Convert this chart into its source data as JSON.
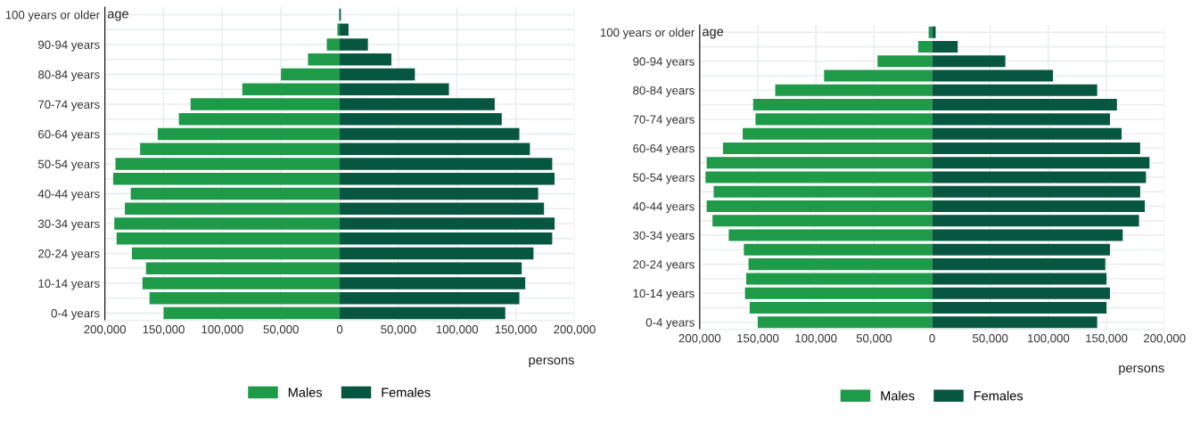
{
  "chart_data": [
    {
      "type": "bar",
      "orientation": "horizontal",
      "ylabel": "age",
      "xlabel": "persons",
      "categories": [
        "100 years or older",
        null,
        "90-94 years",
        null,
        "80-84 years",
        null,
        "70-74 years",
        null,
        "60-64 years",
        null,
        "50-54 years",
        null,
        "40-44 years",
        null,
        "30-34 years",
        null,
        "20-24 years",
        null,
        "10-14 years",
        null,
        "0-4 years"
      ],
      "series": [
        {
          "name": "Males",
          "color": "#1e9a48",
          "values": [
            -500,
            -2000,
            -11000,
            -27000,
            -50000,
            -83000,
            -127000,
            -137000,
            -155000,
            -170000,
            -191000,
            -193000,
            -178000,
            -183000,
            -192000,
            -190000,
            -177000,
            -165000,
            -168000,
            -162000,
            -150000
          ]
        },
        {
          "name": "Females",
          "color": "#075640",
          "values": [
            1000,
            7500,
            24000,
            44000,
            64000,
            93000,
            132000,
            138000,
            153000,
            162000,
            181000,
            183000,
            169000,
            174000,
            183000,
            181000,
            165000,
            155000,
            158000,
            153000,
            141000
          ]
        }
      ],
      "xlim": [
        -200000,
        200000
      ],
      "xticks": [
        {
          "value": -200000,
          "label": "200,000"
        },
        {
          "value": -150000,
          "label": "150,000"
        },
        {
          "value": -100000,
          "label": "100,000"
        },
        {
          "value": -50000,
          "label": "50,000"
        },
        0,
        {
          "value": 50000,
          "label": "50,000"
        },
        {
          "value": 100000,
          "label": "100,000"
        },
        {
          "value": 150000,
          "label": "150,000"
        },
        {
          "value": 200000,
          "label": "200,000"
        }
      ],
      "grid": true,
      "legend": "bottom",
      "stacked": true
    },
    {
      "type": "bar",
      "orientation": "horizontal",
      "ylabel": "age",
      "xlabel": "persons",
      "categories": [
        "100 years or older",
        null,
        "90-94 years",
        null,
        "80-84 years",
        null,
        "70-74 years",
        null,
        "60-64 years",
        null,
        "50-54 years",
        null,
        "40-44 years",
        null,
        "30-34 years",
        null,
        "20-24 years",
        null,
        "10-14 years",
        null,
        "0-4 years"
      ],
      "series": [
        {
          "name": "Males",
          "color": "#1e9a48",
          "values": [
            -3000,
            -12000,
            -47000,
            -93000,
            -135000,
            -154000,
            -152000,
            -163000,
            -180000,
            -194000,
            -195000,
            -188000,
            -194000,
            -189000,
            -175000,
            -162000,
            -158000,
            -160000,
            -161000,
            -157000,
            -150000
          ]
        },
        {
          "name": "Females",
          "color": "#075640",
          "values": [
            3000,
            22000,
            63000,
            104000,
            142000,
            159000,
            153000,
            163000,
            179000,
            187000,
            184000,
            179000,
            183000,
            178000,
            164000,
            153000,
            149000,
            150000,
            153000,
            150000,
            142000
          ]
        }
      ],
      "xlim": [
        -200000,
        200000
      ],
      "xticks": [
        {
          "value": -200000,
          "label": "200,000"
        },
        {
          "value": -150000,
          "label": "150,000"
        },
        {
          "value": -100000,
          "label": "100,000"
        },
        {
          "value": -50000,
          "label": "50,000"
        },
        0,
        {
          "value": 50000,
          "label": "50,000"
        },
        {
          "value": 100000,
          "label": "100,000"
        },
        {
          "value": 150000,
          "label": "150,000"
        },
        {
          "value": 200000,
          "label": "200,000"
        }
      ],
      "grid": true,
      "legend": "bottom",
      "stacked": true
    }
  ]
}
